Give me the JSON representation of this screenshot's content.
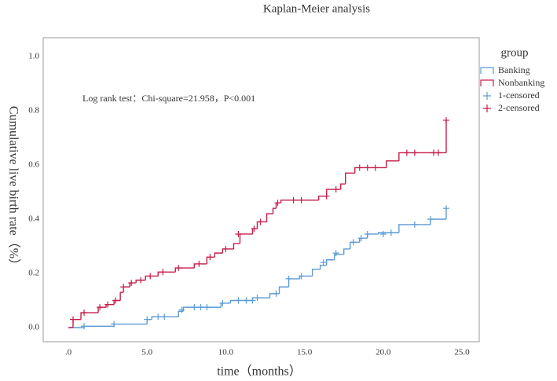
{
  "chart_data": {
    "type": "step",
    "title": "Kaplan-Meier analysis",
    "annotation": "Log rank test：Chi-square=21.958，P<0.001",
    "x_label": "time（months）",
    "y_label": "Cumulative live birth rate（%）",
    "legend_title": "group",
    "xlim": [
      0,
      25
    ],
    "ylim": [
      0,
      1
    ],
    "xticks": [
      {
        "value": 0,
        "label": ".0"
      },
      {
        "value": 5,
        "label": "5.0"
      },
      {
        "value": 10,
        "label": "10.0"
      },
      {
        "value": 15,
        "label": "15.0"
      },
      {
        "value": 20,
        "label": "20.0"
      },
      {
        "value": 25,
        "label": "25.0"
      }
    ],
    "yticks": [
      {
        "value": 0,
        "label": "0.0"
      },
      {
        "value": 0.2,
        "label": "0.2"
      },
      {
        "value": 0.4,
        "label": "0.4"
      },
      {
        "value": 0.6,
        "label": "0.6"
      },
      {
        "value": 0.8,
        "label": "0.8"
      },
      {
        "value": 1,
        "label": "1.0"
      }
    ],
    "series": [
      {
        "name": "Banking",
        "kind": "step",
        "color": "#5b9bd5",
        "x": [
          0,
          1.0,
          2.9,
          5.0,
          5.3,
          7.0,
          7.3,
          9.7,
          10.3,
          11.7,
          12.8,
          13.4,
          14.0,
          14.7,
          15.5,
          16.0,
          16.4,
          16.9,
          17.5,
          17.9,
          18.5,
          19.0,
          19.7,
          21.0,
          23.0,
          24.0
        ],
        "values": [
          0,
          0.005,
          0.013,
          0.03,
          0.04,
          0.06,
          0.075,
          0.09,
          0.1,
          0.11,
          0.125,
          0.15,
          0.18,
          0.19,
          0.215,
          0.23,
          0.25,
          0.27,
          0.29,
          0.315,
          0.33,
          0.345,
          0.35,
          0.38,
          0.4,
          0.44
        ]
      },
      {
        "name": "Nonbanking",
        "kind": "step",
        "color": "#c41e4a",
        "x": [
          0,
          0.3,
          0.8,
          1.9,
          2.4,
          2.9,
          3.3,
          3.5,
          3.9,
          4.3,
          4.9,
          5.7,
          6.8,
          8.0,
          8.8,
          9.3,
          9.8,
          10.5,
          10.9,
          11.7,
          12.0,
          12.6,
          13.0,
          13.2,
          13.5,
          15.9,
          16.4,
          17.3,
          17.6,
          18.2,
          20.2,
          21.0,
          24.0
        ],
        "values": [
          0,
          0.03,
          0.055,
          0.075,
          0.085,
          0.1,
          0.13,
          0.15,
          0.165,
          0.175,
          0.19,
          0.205,
          0.22,
          0.235,
          0.26,
          0.275,
          0.29,
          0.31,
          0.345,
          0.365,
          0.39,
          0.42,
          0.44,
          0.46,
          0.47,
          0.485,
          0.51,
          0.53,
          0.57,
          0.59,
          0.615,
          0.645,
          0.765
        ]
      },
      {
        "name": "1-censored",
        "kind": "censored",
        "color": "#5b9bd5",
        "x": [
          1.0,
          2.9,
          5.0,
          5.7,
          6.1,
          7.2,
          8.0,
          8.4,
          8.8,
          9.8,
          10.8,
          11.3,
          11.7,
          12.0,
          13.2,
          14.0,
          14.8,
          16.2,
          17.0,
          18.1,
          18.6,
          19.0,
          20.0,
          20.5,
          22.0,
          23.0,
          24.0
        ],
        "values": [
          0.005,
          0.013,
          0.03,
          0.04,
          0.04,
          0.065,
          0.075,
          0.075,
          0.075,
          0.09,
          0.1,
          0.1,
          0.1,
          0.11,
          0.125,
          0.18,
          0.19,
          0.24,
          0.275,
          0.315,
          0.33,
          0.345,
          0.345,
          0.35,
          0.38,
          0.4,
          0.44
        ]
      },
      {
        "name": "2-censored",
        "kind": "censored",
        "color": "#c41e4a",
        "x": [
          0.3,
          1.0,
          2.0,
          2.5,
          3.0,
          3.5,
          4.0,
          4.6,
          5.2,
          6.0,
          7.0,
          8.3,
          9.0,
          10.0,
          10.8,
          11.8,
          12.2,
          13.3,
          14.3,
          14.8,
          16.4,
          17.0,
          18.5,
          19.0,
          19.5,
          21.5,
          22.0,
          23.2,
          23.5,
          24.0
        ],
        "values": [
          0.03,
          0.055,
          0.075,
          0.085,
          0.1,
          0.15,
          0.165,
          0.175,
          0.19,
          0.205,
          0.22,
          0.235,
          0.26,
          0.29,
          0.345,
          0.365,
          0.39,
          0.46,
          0.47,
          0.47,
          0.485,
          0.51,
          0.59,
          0.59,
          0.59,
          0.645,
          0.645,
          0.645,
          0.645,
          0.765
        ]
      }
    ]
  }
}
